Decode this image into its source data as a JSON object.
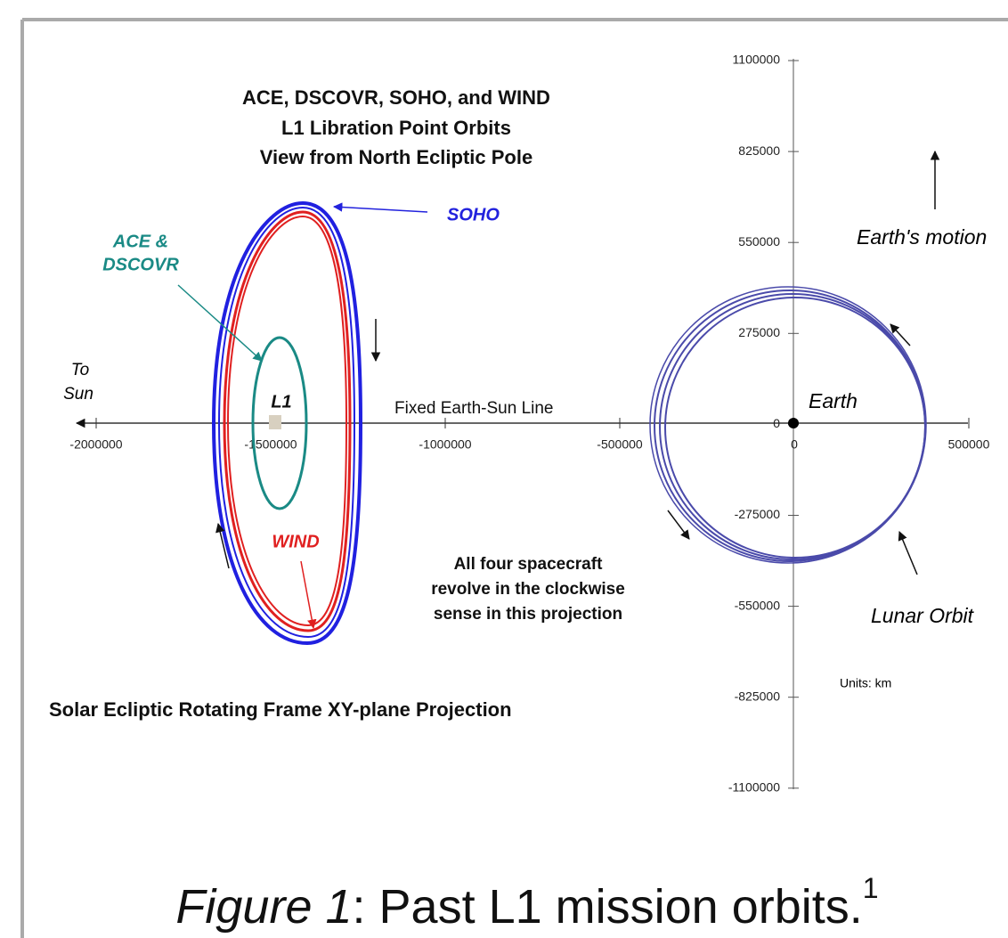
{
  "title": [
    "ACE, DSCOVR, SOHO, and WIND",
    "L1 Libration Point Orbits",
    "View from North Ecliptic Pole"
  ],
  "labels": {
    "soho": "SOHO",
    "ace": [
      "ACE &",
      "DSCOVR"
    ],
    "wind": "WIND",
    "l1": "L1",
    "to_sun": [
      "To",
      "Sun"
    ],
    "line": "Fixed Earth-Sun Line",
    "earth": "Earth",
    "motion": "Earth's motion",
    "lunar": "Lunar Orbit",
    "units": "Units: km",
    "note": [
      "All four spacecraft",
      "revolve in the clockwise",
      "sense in this projection"
    ],
    "projection": "Solar Ecliptic Rotating Frame XY-plane Projection"
  },
  "x_ticks": [
    "-2000000",
    "-1500000",
    "-1000000",
    "-500000",
    "0",
    "500000"
  ],
  "y_ticks": [
    "1100000",
    "825000",
    "550000",
    "275000",
    "0",
    "-275000",
    "-550000",
    "-825000",
    "-1100000"
  ],
  "caption": {
    "italic": "Figure 1",
    "text": ": Past L1 mission orbits.",
    "superscript": "1"
  }
}
